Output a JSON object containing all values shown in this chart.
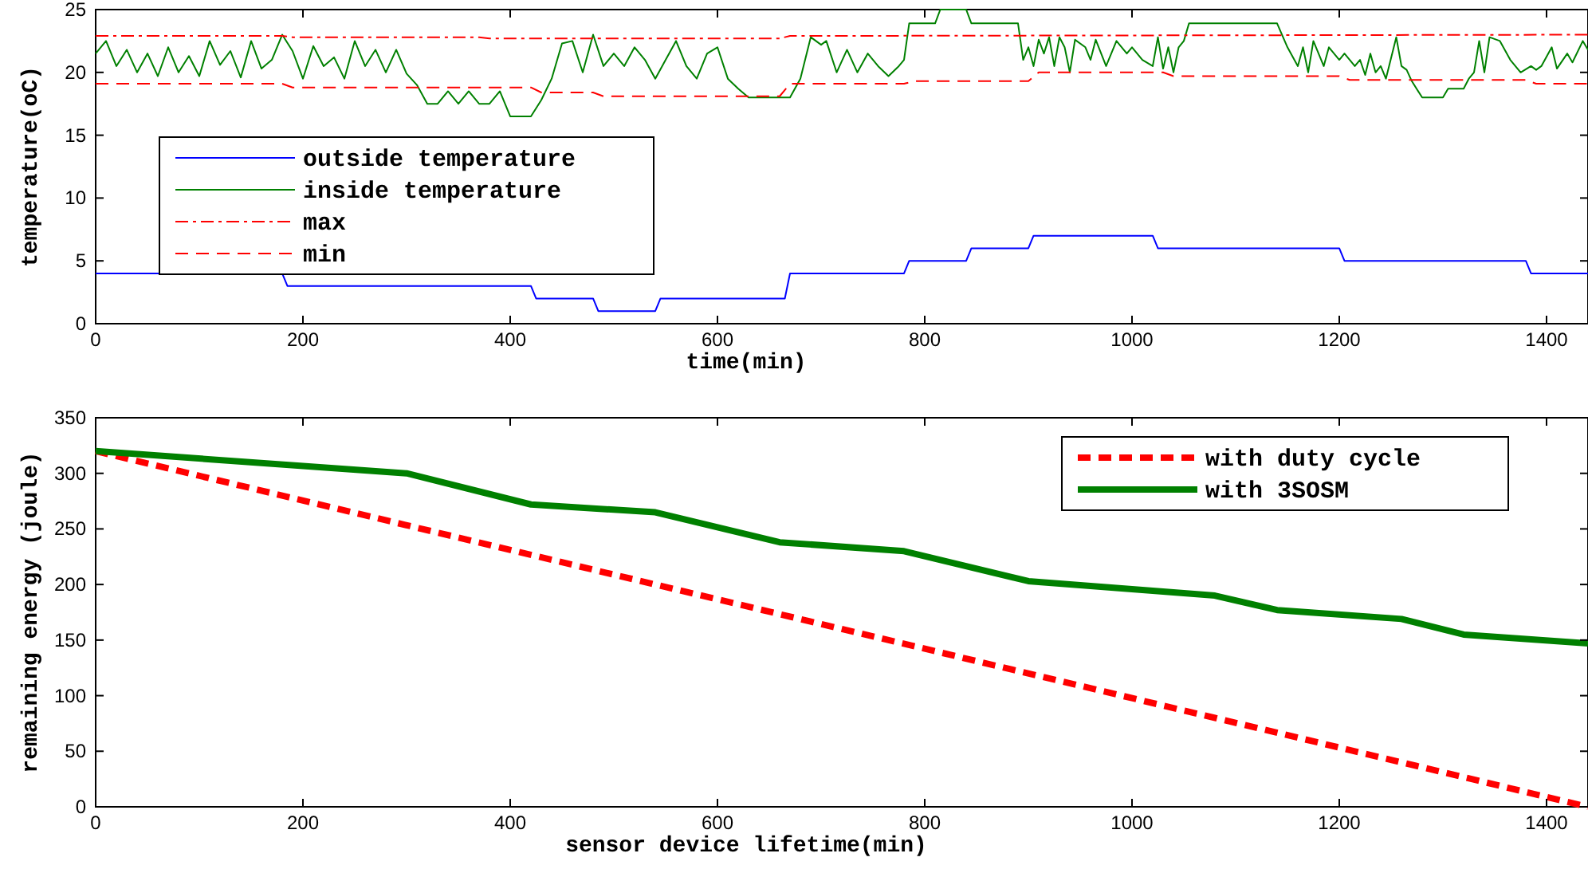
{
  "chart_data": [
    {
      "type": "line",
      "xlabel": "time(min)",
      "ylabel": "temperature(oC)",
      "xlim": [
        0,
        1440
      ],
      "ylim": [
        0,
        25
      ],
      "xticks": [
        0,
        200,
        400,
        600,
        800,
        1000,
        1200,
        1400
      ],
      "yticks": [
        0,
        5,
        10,
        15,
        20,
        25
      ],
      "grid": false,
      "legend": "left",
      "series": [
        {
          "name": "outside temperature",
          "color": "#0000ff",
          "line_style": "solid",
          "x": [
            0,
            180,
            185,
            420,
            425,
            480,
            485,
            540,
            545,
            665,
            670,
            780,
            785,
            840,
            845,
            900,
            905,
            1020,
            1025,
            1200,
            1205,
            1380,
            1385,
            1440
          ],
          "values": [
            4,
            4,
            3,
            3,
            2,
            2,
            1,
            1,
            2,
            2,
            4,
            4,
            5,
            5,
            6,
            6,
            7,
            7,
            6,
            6,
            5,
            5,
            4,
            4
          ]
        },
        {
          "name": "inside temperature",
          "color": "#008000",
          "line_style": "solid",
          "x": [
            0,
            10,
            20,
            30,
            40,
            50,
            60,
            70,
            80,
            90,
            100,
            110,
            120,
            130,
            140,
            150,
            160,
            170,
            180,
            190,
            200,
            210,
            220,
            230,
            240,
            250,
            260,
            270,
            280,
            290,
            300,
            310,
            320,
            330,
            340,
            350,
            360,
            370,
            380,
            390,
            400,
            410,
            420,
            430,
            440,
            450,
            460,
            470,
            480,
            490,
            500,
            510,
            520,
            530,
            540,
            550,
            560,
            570,
            580,
            590,
            600,
            610,
            620,
            630,
            640,
            660,
            670,
            680,
            690,
            700,
            705,
            715,
            725,
            735,
            745,
            755,
            765,
            775,
            780,
            785,
            810,
            815,
            840,
            845,
            890,
            895,
            900,
            905,
            910,
            915,
            920,
            925,
            930,
            935,
            940,
            945,
            955,
            960,
            965,
            975,
            985,
            995,
            1000,
            1010,
            1020,
            1025,
            1030,
            1035,
            1040,
            1045,
            1050,
            1055,
            1140,
            1150,
            1160,
            1165,
            1170,
            1175,
            1180,
            1185,
            1190,
            1200,
            1205,
            1215,
            1220,
            1225,
            1230,
            1235,
            1240,
            1245,
            1255,
            1260,
            1265,
            1270,
            1280,
            1300,
            1305,
            1320,
            1325,
            1330,
            1335,
            1340,
            1345,
            1355,
            1365,
            1375,
            1385,
            1390,
            1395,
            1405,
            1410,
            1420,
            1425,
            1435,
            1440
          ],
          "values": [
            21.5,
            22.5,
            20.5,
            21.8,
            20,
            21.5,
            19.7,
            22,
            20,
            21.3,
            19.7,
            22.5,
            20.6,
            21.7,
            19.6,
            22.5,
            20.3,
            21,
            23,
            21.7,
            19.5,
            22.1,
            20.5,
            21.2,
            19.5,
            22.5,
            20.5,
            21.8,
            20,
            21.8,
            19.9,
            19,
            17.5,
            17.5,
            18.5,
            17.5,
            18.5,
            17.5,
            17.5,
            18.5,
            16.5,
            16.5,
            16.5,
            17.8,
            19.5,
            22.3,
            22.5,
            20,
            23,
            20.5,
            21.5,
            20.5,
            22,
            21,
            19.5,
            21,
            22.5,
            20.5,
            19.5,
            21.5,
            22,
            19.5,
            18.7,
            18,
            18,
            18,
            18,
            19.5,
            22.8,
            22.2,
            22.5,
            20,
            21.8,
            20,
            21.5,
            20.5,
            19.7,
            20.5,
            21,
            23.9,
            23.9,
            25,
            25,
            23.9,
            23.9,
            21,
            22,
            20.5,
            22.6,
            21.5,
            22.8,
            20.5,
            22.8,
            22,
            20,
            22.6,
            22,
            21,
            22.6,
            20.5,
            22.5,
            21.5,
            22,
            21,
            20.5,
            22.8,
            20.3,
            22,
            20,
            22,
            22.5,
            23.9,
            23.9,
            22,
            20.5,
            22,
            20,
            22.5,
            21.5,
            20.5,
            22,
            21,
            21.5,
            20.5,
            21,
            19.8,
            21.5,
            20,
            20.5,
            19.5,
            22.8,
            20.5,
            20.2,
            19.3,
            18,
            18,
            18.7,
            18.7,
            19.5,
            20,
            22.5,
            20,
            22.8,
            22.5,
            21,
            20,
            20.5,
            20.2,
            20.5,
            22,
            20.3,
            21.5,
            20.8,
            22.5,
            21.8
          ]
        },
        {
          "name": "max",
          "color": "#ff0000",
          "line_style": "dashdot",
          "x": [
            0,
            180,
            190,
            370,
            380,
            660,
            670,
            1440
          ],
          "values": [
            22.9,
            22.9,
            22.8,
            22.8,
            22.7,
            22.7,
            22.9,
            23
          ]
        },
        {
          "name": "min",
          "color": "#ff0000",
          "line_style": "dashed",
          "x": [
            0,
            180,
            190,
            370,
            380,
            420,
            430,
            480,
            490,
            660,
            670,
            780,
            790,
            900,
            910,
            1030,
            1040,
            1200,
            1210,
            1380,
            1390,
            1440
          ],
          "values": [
            19.1,
            19.1,
            18.8,
            18.8,
            18.8,
            18.8,
            18.4,
            18.4,
            18.1,
            18.1,
            19.1,
            19.1,
            19.3,
            19.3,
            20,
            20,
            19.7,
            19.7,
            19.4,
            19.4,
            19.1,
            19.1
          ]
        }
      ]
    },
    {
      "type": "line",
      "xlabel": "sensor device lifetime(min)",
      "ylabel": "remaining energy (joule)",
      "xlim": [
        0,
        1440
      ],
      "ylim": [
        0,
        350
      ],
      "xticks": [
        0,
        200,
        400,
        600,
        800,
        1000,
        1200,
        1400
      ],
      "yticks": [
        0,
        50,
        100,
        150,
        200,
        250,
        300,
        350
      ],
      "grid": false,
      "legend": "top right",
      "series": [
        {
          "name": "with duty cycle",
          "color": "#ff0000",
          "line_style": "dashed",
          "x": [
            0,
            1440
          ],
          "values": [
            320,
            0
          ]
        },
        {
          "name": "with 3SOSM",
          "color": "#008000",
          "line_style": "solid",
          "x": [
            0,
            300,
            420,
            540,
            660,
            780,
            900,
            1080,
            1140,
            1260,
            1320,
            1440
          ],
          "values": [
            320,
            300,
            272,
            265,
            238,
            230,
            203,
            190,
            177,
            169,
            155,
            147
          ]
        }
      ]
    }
  ]
}
